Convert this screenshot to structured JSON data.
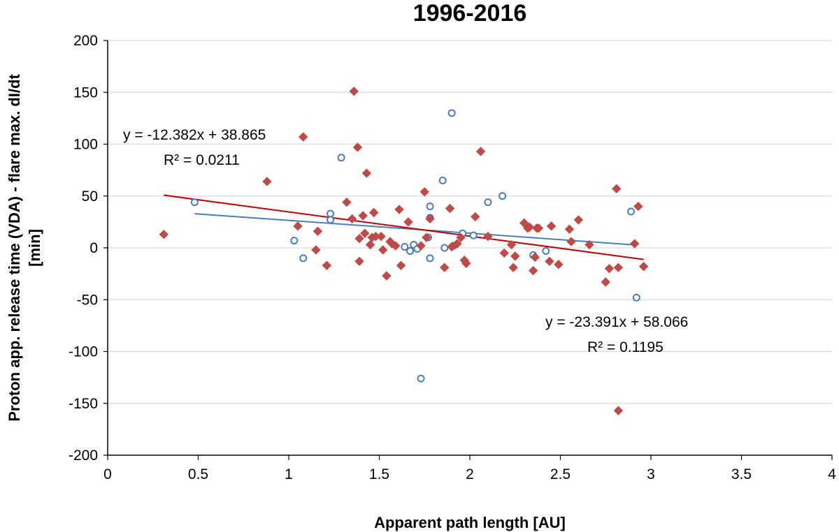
{
  "chart_data": {
    "type": "scatter",
    "title": "1996-2016",
    "xlabel": "Apparent path length [AU]",
    "ylabel_line1": "Proton app. release time (VDA) - flare max. dI/dt",
    "ylabel_line2": "[min]",
    "xlim": [
      0,
      4
    ],
    "ylim": [
      -200,
      200
    ],
    "x_ticks": [
      "0",
      "0.5",
      "1",
      "1.5",
      "2",
      "2.5",
      "3",
      "3.5",
      "4"
    ],
    "y_ticks": [
      "200",
      "150",
      "100",
      "50",
      "0",
      "-50",
      "-100",
      "-150",
      "-200"
    ],
    "grid": true,
    "colors": {
      "blue": "#4a7ebb",
      "red": "#be4b48",
      "grid": "#d9d9d9",
      "axis": "#000000"
    },
    "series": [
      {
        "marker": "open-circle",
        "color": "#4a7ebb",
        "x": [
          0.48,
          1.03,
          1.08,
          1.23,
          1.23,
          1.29,
          1.64,
          1.67,
          1.69,
          1.71,
          1.73,
          1.77,
          1.78,
          1.78,
          1.78,
          1.85,
          1.86,
          1.9,
          1.91,
          1.96,
          2.02,
          2.1,
          2.18,
          2.35,
          2.42,
          2.89,
          2.92
        ],
        "values": [
          44,
          7,
          -10,
          33,
          27,
          87,
          1,
          -3,
          3,
          -1,
          -126,
          10,
          40,
          29,
          -10,
          65,
          0,
          130,
          2,
          14,
          12,
          44,
          50,
          -7,
          -3,
          35,
          -48
        ]
      },
      {
        "marker": "diamond",
        "color": "#be4b48",
        "x": [
          0.31,
          0.88,
          1.05,
          1.08,
          1.15,
          1.16,
          1.21,
          1.32,
          1.35,
          1.36,
          1.38,
          1.39,
          1.39,
          1.41,
          1.42,
          1.43,
          1.45,
          1.46,
          1.47,
          1.48,
          1.51,
          1.52,
          1.54,
          1.56,
          1.57,
          1.59,
          1.61,
          1.62,
          1.66,
          1.73,
          1.75,
          1.76,
          1.78,
          1.86,
          1.89,
          1.9,
          1.93,
          1.95,
          1.97,
          1.98,
          2.03,
          2.06,
          2.1,
          2.19,
          2.23,
          2.24,
          2.25,
          2.3,
          2.32,
          2.33,
          2.35,
          2.36,
          2.37,
          2.38,
          2.44,
          2.45,
          2.49,
          2.55,
          2.56,
          2.6,
          2.66,
          2.75,
          2.77,
          2.81,
          2.82,
          2.82,
          2.91,
          2.93,
          2.96
        ],
        "values": [
          13,
          64,
          21,
          107,
          -2,
          16,
          -17,
          44,
          28,
          151,
          97,
          9,
          -13,
          31,
          14,
          72,
          3,
          10,
          34,
          11,
          11,
          -2,
          -27,
          6,
          4,
          2,
          37,
          -17,
          25,
          2,
          54,
          10,
          28,
          -19,
          38,
          1,
          4,
          10,
          -12,
          -15,
          30,
          93,
          11,
          -5,
          3,
          -19,
          -8,
          24,
          19,
          20,
          -22,
          -9,
          19,
          19,
          -13,
          21,
          -16,
          18,
          6,
          27,
          3,
          -33,
          -20,
          57,
          -157,
          -19,
          4,
          40,
          -18
        ]
      }
    ],
    "trendlines": [
      {
        "color": "#4a7ebb",
        "slope": -12.382,
        "intercept": 38.865,
        "x_range": [
          0.48,
          2.92
        ]
      },
      {
        "color": "#c00000",
        "slope": -23.391,
        "intercept": 58.066,
        "x_range": [
          0.31,
          2.96
        ]
      }
    ],
    "annotations": [
      {
        "line1": "y = -12.382x + 38.865",
        "line2": "R² = 0.0211"
      },
      {
        "line1": "y = -23.391x + 58.066",
        "line2": "R² = 0.1195"
      }
    ]
  }
}
